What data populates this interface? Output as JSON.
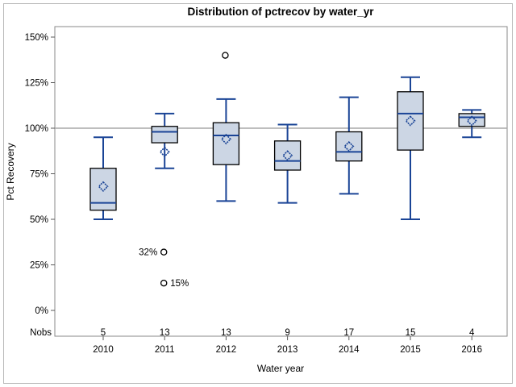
{
  "figure": {
    "title": "Distribution of pctrecov by water_yr",
    "y_axis": {
      "label": "Pct Recovery"
    },
    "x_axis": {
      "label": "Water year"
    },
    "nobs_header": "Nobs",
    "colors": {
      "box_fill": "#ccd6e4",
      "box_border": "#000000",
      "whisker": "#1a4496",
      "median": "#1a4496",
      "mean_marker": "#1a4496",
      "reference_line": "#a8a8a8",
      "plot_border": "#8a8a8a",
      "tick": "#5a5a5a",
      "outlier_stroke": "#000000",
      "outlier_fill": "#ffffff"
    }
  },
  "chart_data": {
    "type": "boxplot",
    "title": "Distribution of pctrecov by water_yr",
    "xlabel": "Water year",
    "ylabel": "Pct Recovery",
    "legend": "none",
    "grid": "off",
    "ylim_pct": [
      0,
      150
    ],
    "y_ticks": [
      {
        "value": 150,
        "label": "150%"
      },
      {
        "value": 125,
        "label": "125%"
      },
      {
        "value": 100,
        "label": "100%"
      },
      {
        "value": 75,
        "label": "75%"
      },
      {
        "value": 50,
        "label": "50%"
      },
      {
        "value": 25,
        "label": "25%"
      },
      {
        "value": 0,
        "label": "0%"
      }
    ],
    "reference_line_pct": 100,
    "categories": [
      "2010",
      "2011",
      "2012",
      "2013",
      "2014",
      "2015",
      "2016"
    ],
    "nobs": [
      5,
      13,
      13,
      9,
      17,
      15,
      4
    ],
    "series": [
      {
        "category": "2010",
        "whisker_low": 50,
        "q1": 55,
        "median": 59,
        "q3": 78,
        "whisker_high": 95,
        "mean": 68,
        "nobs": 5
      },
      {
        "category": "2011",
        "whisker_low": 78,
        "q1": 92,
        "median": 98,
        "q3": 101,
        "whisker_high": 108,
        "mean": 87,
        "nobs": 13
      },
      {
        "category": "2012",
        "whisker_low": 60,
        "q1": 80,
        "median": 96,
        "q3": 103,
        "whisker_high": 116,
        "mean": 94,
        "nobs": 13
      },
      {
        "category": "2013",
        "whisker_low": 59,
        "q1": 77,
        "median": 82,
        "q3": 93,
        "whisker_high": 102,
        "mean": 85,
        "nobs": 9
      },
      {
        "category": "2014",
        "whisker_low": 64,
        "q1": 82,
        "median": 87,
        "q3": 98,
        "whisker_high": 117,
        "mean": 90,
        "nobs": 17
      },
      {
        "category": "2015",
        "whisker_low": 50,
        "q1": 88,
        "median": 108,
        "q3": 120,
        "whisker_high": 128,
        "mean": 104,
        "nobs": 15
      },
      {
        "category": "2016",
        "whisker_low": 95,
        "q1": 101,
        "median": 106,
        "q3": 108,
        "whisker_high": 110,
        "mean": 104,
        "nobs": 4
      }
    ],
    "outliers": [
      {
        "category": "2011",
        "value_pct": 32,
        "label": "32%",
        "label_side": "left"
      },
      {
        "category": "2011",
        "value_pct": 15,
        "label": "15%",
        "label_side": "right"
      },
      {
        "category": "2012",
        "value_pct": 140,
        "label": "",
        "label_side": "none"
      }
    ]
  }
}
